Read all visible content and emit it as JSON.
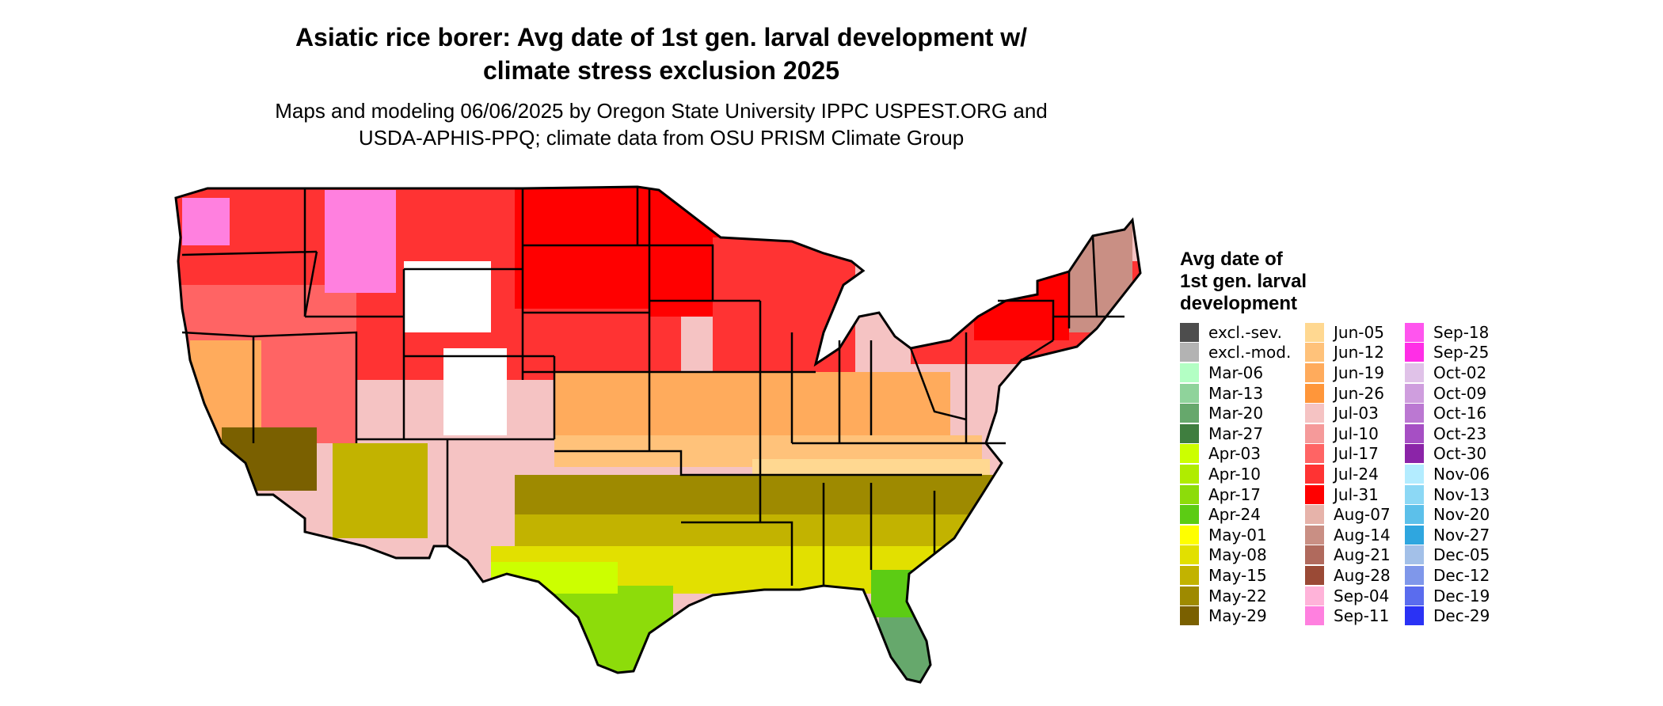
{
  "title_line1": "Asiatic rice borer: Avg date of 1st gen. larval development w/",
  "title_line2": "climate stress exclusion 2025",
  "subtitle_line1": "Maps and modeling 06/06/2025 by Oregon State University IPPC USPEST.ORG and",
  "subtitle_line2": "USDA-APHIS-PPQ; climate data from OSU PRISM Climate Group",
  "legend": {
    "title_line1": "Avg date of",
    "title_line2": "1st gen. larval",
    "title_line3": "development",
    "columns": [
      [
        {
          "label": "excl.-sev.",
          "color": "#4d4d4d"
        },
        {
          "label": "excl.-mod.",
          "color": "#b3b3b3"
        },
        {
          "label": "Mar-06",
          "color": "#b3ffc4"
        },
        {
          "label": "Mar-13",
          "color": "#8fd39b"
        },
        {
          "label": "Mar-20",
          "color": "#66a86c"
        },
        {
          "label": "Mar-27",
          "color": "#3f7e3f"
        },
        {
          "label": "Apr-03",
          "color": "#ccff00"
        },
        {
          "label": "Apr-10",
          "color": "#b0ec00"
        },
        {
          "label": "Apr-17",
          "color": "#8ddc0a"
        },
        {
          "label": "Apr-24",
          "color": "#5ccc14"
        },
        {
          "label": "May-01",
          "color": "#ffff00"
        },
        {
          "label": "May-08",
          "color": "#e2e000"
        },
        {
          "label": "May-15",
          "color": "#c2b300"
        },
        {
          "label": "May-22",
          "color": "#9e8a00"
        },
        {
          "label": "May-29",
          "color": "#7a6000"
        }
      ],
      [
        {
          "label": "Jun-05",
          "color": "#ffd891"
        },
        {
          "label": "Jun-12",
          "color": "#ffc27a"
        },
        {
          "label": "Jun-19",
          "color": "#ffab5c"
        },
        {
          "label": "Jun-26",
          "color": "#ff963a"
        },
        {
          "label": "Jul-03",
          "color": "#f5c3c3"
        },
        {
          "label": "Jul-10",
          "color": "#f59a9a"
        },
        {
          "label": "Jul-17",
          "color": "#ff6464"
        },
        {
          "label": "Jul-24",
          "color": "#ff3333"
        },
        {
          "label": "Jul-31",
          "color": "#ff0000"
        },
        {
          "label": "Aug-07",
          "color": "#e6b3aa"
        },
        {
          "label": "Aug-14",
          "color": "#c98f84"
        },
        {
          "label": "Aug-21",
          "color": "#b06a5d"
        },
        {
          "label": "Aug-28",
          "color": "#9a4a36"
        },
        {
          "label": "Sep-04",
          "color": "#ffb3d9"
        },
        {
          "label": "Sep-11",
          "color": "#ff80df"
        }
      ],
      [
        {
          "label": "Sep-18",
          "color": "#ff55ee"
        },
        {
          "label": "Sep-25",
          "color": "#ff2ee6"
        },
        {
          "label": "Oct-02",
          "color": "#e0c2e8"
        },
        {
          "label": "Oct-09",
          "color": "#cf9ede"
        },
        {
          "label": "Oct-16",
          "color": "#bb78d2"
        },
        {
          "label": "Oct-23",
          "color": "#a64fc4"
        },
        {
          "label": "Oct-30",
          "color": "#8b24a8"
        },
        {
          "label": "Nov-06",
          "color": "#b3ecff"
        },
        {
          "label": "Nov-13",
          "color": "#8cd8f5"
        },
        {
          "label": "Nov-20",
          "color": "#5cc0ea"
        },
        {
          "label": "Nov-27",
          "color": "#2fa6df"
        },
        {
          "label": "Dec-05",
          "color": "#a3c0e8"
        },
        {
          "label": "Dec-12",
          "color": "#7f97ea"
        },
        {
          "label": "Dec-19",
          "color": "#5a6cee"
        },
        {
          "label": "Dec-29",
          "color": "#2a32f5"
        }
      ]
    ]
  }
}
